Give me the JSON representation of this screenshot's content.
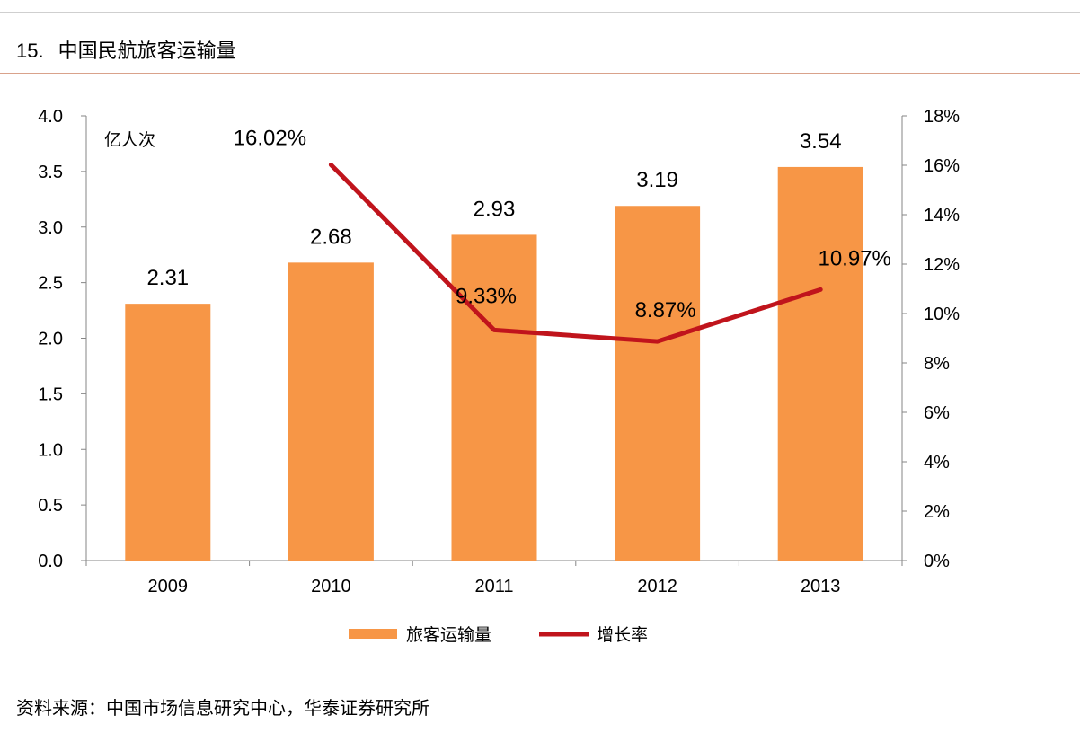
{
  "figure": {
    "number": "15.",
    "title": "中国民航旅客运输量"
  },
  "source": "资料来源：中国市场信息研究中心，华泰证券研究所",
  "chart_data": {
    "type": "bar",
    "categories": [
      "2009",
      "2010",
      "2011",
      "2012",
      "2013"
    ],
    "unit_label": "亿人次",
    "series": [
      {
        "name": "旅客运输量",
        "type": "bar",
        "axis": "left",
        "values": [
          2.31,
          2.68,
          2.93,
          3.19,
          3.54
        ],
        "labels": [
          "2.31",
          "2.68",
          "2.93",
          "3.19",
          "3.54"
        ],
        "color": "#f79646"
      },
      {
        "name": "增长率",
        "type": "line",
        "axis": "right",
        "values": [
          null,
          16.02,
          9.33,
          8.87,
          10.97
        ],
        "labels": [
          null,
          "16.02%",
          "9.33%",
          "8.87%",
          "10.97%"
        ],
        "color": "#c0141c"
      }
    ],
    "y_left": {
      "min": 0,
      "max": 4,
      "ticks": [
        "0.0",
        "0.5",
        "1.0",
        "1.5",
        "2.0",
        "2.5",
        "3.0",
        "3.5",
        "4.0"
      ]
    },
    "y_right": {
      "min": 0,
      "max": 18,
      "ticks": [
        "0%",
        "2%",
        "4%",
        "6%",
        "8%",
        "10%",
        "12%",
        "14%",
        "16%",
        "18%"
      ]
    },
    "grid": false,
    "legend": "bottom-center"
  }
}
